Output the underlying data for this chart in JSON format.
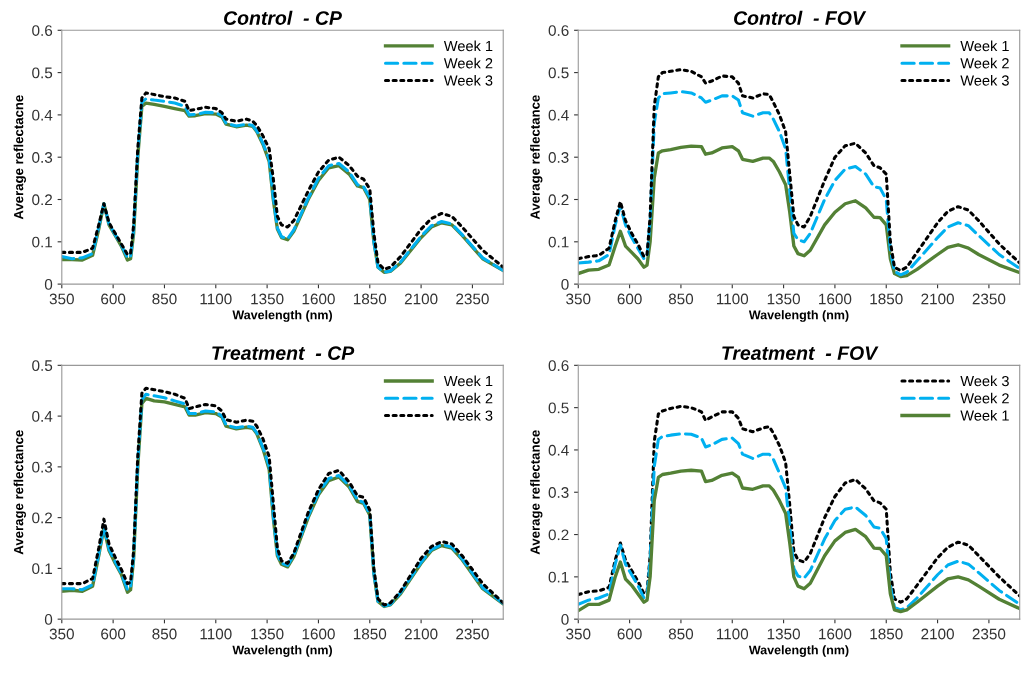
{
  "chart_data": [
    {
      "type": "line",
      "title": "Control  - CP",
      "xlabel": "Wavelength (nm)",
      "ylabel": "Average reflectacne",
      "xlim": [
        350,
        2500
      ],
      "xticks": [
        350,
        600,
        850,
        1100,
        1350,
        1600,
        1850,
        2100,
        2350
      ],
      "ylim": [
        0,
        0.6
      ],
      "yticks": [
        0,
        0.1,
        0.2,
        0.3,
        0.4,
        0.5,
        0.6
      ],
      "grid": false,
      "legend": "top right",
      "x": [
        350,
        400,
        450,
        500,
        530,
        555,
        580,
        610,
        640,
        670,
        685,
        700,
        720,
        740,
        760,
        800,
        850,
        900,
        950,
        970,
        1000,
        1050,
        1100,
        1130,
        1150,
        1200,
        1250,
        1280,
        1300,
        1330,
        1360,
        1380,
        1400,
        1420,
        1450,
        1480,
        1550,
        1600,
        1650,
        1700,
        1750,
        1790,
        1820,
        1850,
        1870,
        1890,
        1920,
        1950,
        2000,
        2100,
        2150,
        2200,
        2250,
        2300,
        2400,
        2500
      ],
      "series": [
        {
          "name": "Week 1",
          "color": "#538135",
          "line_style": "solid",
          "values": [
            0.058,
            0.058,
            0.057,
            0.068,
            0.13,
            0.19,
            0.14,
            0.115,
            0.09,
            0.057,
            0.06,
            0.12,
            0.3,
            0.42,
            0.428,
            0.425,
            0.42,
            0.415,
            0.41,
            0.397,
            0.398,
            0.403,
            0.402,
            0.395,
            0.378,
            0.372,
            0.376,
            0.373,
            0.36,
            0.33,
            0.29,
            0.2,
            0.13,
            0.11,
            0.105,
            0.125,
            0.2,
            0.245,
            0.275,
            0.28,
            0.26,
            0.232,
            0.228,
            0.2,
            0.1,
            0.04,
            0.028,
            0.03,
            0.05,
            0.11,
            0.135,
            0.145,
            0.14,
            0.115,
            0.06,
            0.032
          ]
        },
        {
          "name": "Week 2",
          "color": "#00b0f0",
          "line_style": "dashed",
          "values": [
            0.065,
            0.06,
            0.062,
            0.072,
            0.135,
            0.19,
            0.142,
            0.117,
            0.092,
            0.062,
            0.065,
            0.13,
            0.31,
            0.43,
            0.438,
            0.435,
            0.432,
            0.428,
            0.42,
            0.4,
            0.401,
            0.406,
            0.405,
            0.398,
            0.38,
            0.374,
            0.378,
            0.375,
            0.362,
            0.333,
            0.295,
            0.205,
            0.133,
            0.112,
            0.107,
            0.128,
            0.203,
            0.25,
            0.28,
            0.285,
            0.265,
            0.235,
            0.23,
            0.205,
            0.1,
            0.04,
            0.028,
            0.031,
            0.052,
            0.113,
            0.138,
            0.148,
            0.142,
            0.117,
            0.062,
            0.032
          ]
        },
        {
          "name": "Week 3",
          "color": "#000000",
          "line_style": "dotted",
          "values": [
            0.075,
            0.075,
            0.075,
            0.085,
            0.14,
            0.19,
            0.145,
            0.12,
            0.095,
            0.07,
            0.073,
            0.14,
            0.32,
            0.44,
            0.452,
            0.448,
            0.443,
            0.44,
            0.432,
            0.41,
            0.413,
            0.418,
            0.415,
            0.405,
            0.39,
            0.385,
            0.39,
            0.385,
            0.375,
            0.35,
            0.32,
            0.25,
            0.16,
            0.14,
            0.135,
            0.15,
            0.22,
            0.265,
            0.293,
            0.3,
            0.28,
            0.255,
            0.248,
            0.225,
            0.12,
            0.05,
            0.035,
            0.04,
            0.065,
            0.13,
            0.155,
            0.167,
            0.16,
            0.135,
            0.08,
            0.04
          ]
        }
      ]
    },
    {
      "type": "line",
      "title": "Control  - FOV",
      "xlabel": "Wavelength (nm)",
      "ylabel": "Average reflectance",
      "xlim": [
        350,
        2500
      ],
      "xticks": [
        350,
        600,
        850,
        1100,
        1350,
        1600,
        1850,
        2100,
        2350
      ],
      "ylim": [
        0,
        0.6
      ],
      "yticks": [
        0,
        0.1,
        0.2,
        0.3,
        0.4,
        0.5,
        0.6
      ],
      "grid": false,
      "legend": "top right",
      "x": [
        350,
        400,
        450,
        500,
        530,
        555,
        580,
        610,
        640,
        670,
        685,
        700,
        720,
        740,
        760,
        800,
        850,
        900,
        950,
        970,
        1000,
        1050,
        1100,
        1130,
        1150,
        1200,
        1250,
        1280,
        1300,
        1330,
        1360,
        1380,
        1400,
        1420,
        1450,
        1480,
        1550,
        1600,
        1650,
        1700,
        1750,
        1790,
        1820,
        1850,
        1870,
        1890,
        1920,
        1950,
        2000,
        2100,
        2150,
        2200,
        2250,
        2300,
        2400,
        2500
      ],
      "series": [
        {
          "name": "Week 1",
          "color": "#538135",
          "line_style": "solid",
          "values": [
            0.025,
            0.033,
            0.035,
            0.045,
            0.09,
            0.125,
            0.09,
            0.075,
            0.06,
            0.04,
            0.045,
            0.1,
            0.25,
            0.31,
            0.315,
            0.318,
            0.323,
            0.326,
            0.325,
            0.307,
            0.31,
            0.322,
            0.325,
            0.315,
            0.295,
            0.29,
            0.298,
            0.298,
            0.29,
            0.265,
            0.235,
            0.17,
            0.09,
            0.072,
            0.067,
            0.08,
            0.14,
            0.17,
            0.19,
            0.197,
            0.18,
            0.158,
            0.157,
            0.14,
            0.06,
            0.025,
            0.018,
            0.02,
            0.035,
            0.07,
            0.087,
            0.093,
            0.085,
            0.07,
            0.045,
            0.027
          ]
        },
        {
          "name": "Week 2",
          "color": "#00b0f0",
          "line_style": "dashed",
          "values": [
            0.05,
            0.052,
            0.055,
            0.07,
            0.14,
            0.185,
            0.14,
            0.11,
            0.085,
            0.06,
            0.065,
            0.15,
            0.38,
            0.44,
            0.45,
            0.452,
            0.455,
            0.452,
            0.44,
            0.43,
            0.435,
            0.445,
            0.445,
            0.435,
            0.405,
            0.397,
            0.405,
            0.405,
            0.39,
            0.36,
            0.32,
            0.22,
            0.12,
            0.105,
            0.1,
            0.12,
            0.2,
            0.245,
            0.272,
            0.278,
            0.26,
            0.23,
            0.227,
            0.2,
            0.08,
            0.03,
            0.022,
            0.028,
            0.055,
            0.11,
            0.135,
            0.145,
            0.138,
            0.115,
            0.07,
            0.037
          ]
        },
        {
          "name": "Week 3",
          "color": "#000000",
          "line_style": "dotted",
          "values": [
            0.06,
            0.065,
            0.068,
            0.085,
            0.15,
            0.195,
            0.15,
            0.12,
            0.095,
            0.065,
            0.07,
            0.16,
            0.42,
            0.49,
            0.5,
            0.503,
            0.507,
            0.503,
            0.49,
            0.475,
            0.48,
            0.492,
            0.49,
            0.475,
            0.445,
            0.44,
            0.45,
            0.448,
            0.43,
            0.4,
            0.36,
            0.26,
            0.16,
            0.14,
            0.135,
            0.16,
            0.245,
            0.3,
            0.327,
            0.333,
            0.31,
            0.28,
            0.275,
            0.26,
            0.1,
            0.04,
            0.032,
            0.04,
            0.075,
            0.145,
            0.172,
            0.183,
            0.175,
            0.15,
            0.095,
            0.05
          ]
        }
      ]
    },
    {
      "type": "line",
      "title": "Treatment  - CP",
      "xlabel": "Wavelength (nm)",
      "ylabel": "Average reflectance",
      "xlim": [
        350,
        2500
      ],
      "xticks": [
        350,
        600,
        850,
        1100,
        1350,
        1600,
        1850,
        2100,
        2350
      ],
      "ylim": [
        0,
        0.5
      ],
      "yticks": [
        0,
        0.1,
        0.2,
        0.3,
        0.4,
        0.5
      ],
      "grid": false,
      "legend": "top right",
      "x": [
        350,
        400,
        450,
        500,
        530,
        555,
        580,
        610,
        640,
        670,
        685,
        700,
        720,
        740,
        760,
        800,
        850,
        900,
        950,
        970,
        1000,
        1050,
        1100,
        1130,
        1150,
        1200,
        1250,
        1280,
        1300,
        1330,
        1360,
        1380,
        1400,
        1420,
        1450,
        1480,
        1550,
        1600,
        1650,
        1700,
        1750,
        1790,
        1820,
        1850,
        1870,
        1890,
        1920,
        1950,
        2000,
        2100,
        2150,
        2200,
        2250,
        2300,
        2400,
        2500
      ],
      "series": [
        {
          "name": "Week 1",
          "color": "#538135",
          "line_style": "solid",
          "values": [
            0.055,
            0.057,
            0.055,
            0.065,
            0.125,
            0.18,
            0.135,
            0.11,
            0.088,
            0.053,
            0.058,
            0.12,
            0.3,
            0.425,
            0.435,
            0.43,
            0.428,
            0.423,
            0.418,
            0.402,
            0.402,
            0.407,
            0.405,
            0.398,
            0.38,
            0.375,
            0.378,
            0.376,
            0.365,
            0.335,
            0.295,
            0.2,
            0.125,
            0.108,
            0.103,
            0.123,
            0.2,
            0.245,
            0.273,
            0.28,
            0.26,
            0.232,
            0.228,
            0.205,
            0.09,
            0.035,
            0.025,
            0.028,
            0.05,
            0.11,
            0.135,
            0.145,
            0.14,
            0.117,
            0.06,
            0.03
          ]
        },
        {
          "name": "Week 2",
          "color": "#00b0f0",
          "line_style": "dashed",
          "values": [
            0.06,
            0.06,
            0.058,
            0.068,
            0.128,
            0.183,
            0.138,
            0.113,
            0.09,
            0.058,
            0.062,
            0.125,
            0.31,
            0.432,
            0.443,
            0.44,
            0.436,
            0.43,
            0.424,
            0.405,
            0.405,
            0.41,
            0.408,
            0.4,
            0.382,
            0.377,
            0.38,
            0.378,
            0.367,
            0.338,
            0.3,
            0.205,
            0.128,
            0.11,
            0.106,
            0.126,
            0.203,
            0.248,
            0.277,
            0.283,
            0.263,
            0.235,
            0.23,
            0.207,
            0.09,
            0.035,
            0.026,
            0.029,
            0.052,
            0.112,
            0.137,
            0.147,
            0.142,
            0.119,
            0.062,
            0.031
          ]
        },
        {
          "name": "Week 3",
          "color": "#000000",
          "line_style": "dotted",
          "values": [
            0.07,
            0.07,
            0.07,
            0.08,
            0.14,
            0.197,
            0.148,
            0.122,
            0.098,
            0.07,
            0.073,
            0.135,
            0.32,
            0.445,
            0.455,
            0.452,
            0.448,
            0.443,
            0.435,
            0.415,
            0.418,
            0.423,
            0.42,
            0.41,
            0.393,
            0.388,
            0.392,
            0.39,
            0.38,
            0.355,
            0.32,
            0.23,
            0.14,
            0.115,
            0.11,
            0.13,
            0.21,
            0.255,
            0.287,
            0.293,
            0.27,
            0.243,
            0.24,
            0.215,
            0.1,
            0.04,
            0.028,
            0.032,
            0.055,
            0.12,
            0.143,
            0.153,
            0.148,
            0.125,
            0.07,
            0.032
          ]
        }
      ]
    },
    {
      "type": "line",
      "title": "Treatment  - FOV",
      "xlabel": "Wavelength (nm)",
      "ylabel": "Average reflectance",
      "xlim": [
        350,
        2500
      ],
      "xticks": [
        350,
        600,
        850,
        1100,
        1350,
        1600,
        1850,
        2100,
        2350
      ],
      "ylim": [
        0,
        0.6
      ],
      "yticks": [
        0,
        0.1,
        0.2,
        0.3,
        0.4,
        0.5,
        0.6
      ],
      "grid": false,
      "legend": "top right",
      "x": [
        350,
        400,
        450,
        500,
        530,
        555,
        580,
        610,
        640,
        670,
        685,
        700,
        720,
        740,
        760,
        800,
        850,
        900,
        950,
        970,
        1000,
        1050,
        1100,
        1130,
        1150,
        1200,
        1250,
        1280,
        1300,
        1330,
        1360,
        1380,
        1400,
        1420,
        1450,
        1480,
        1550,
        1600,
        1650,
        1700,
        1750,
        1790,
        1820,
        1850,
        1870,
        1890,
        1920,
        1950,
        2000,
        2100,
        2150,
        2200,
        2250,
        2300,
        2400,
        2500
      ],
      "series": [
        {
          "name": "Week 3",
          "color": "#000000",
          "line_style": "dotted",
          "values": [
            0.058,
            0.065,
            0.067,
            0.075,
            0.14,
            0.18,
            0.14,
            0.115,
            0.09,
            0.06,
            0.065,
            0.15,
            0.42,
            0.485,
            0.492,
            0.498,
            0.503,
            0.5,
            0.49,
            0.47,
            0.478,
            0.49,
            0.49,
            0.475,
            0.45,
            0.443,
            0.452,
            0.455,
            0.44,
            0.41,
            0.37,
            0.27,
            0.16,
            0.14,
            0.135,
            0.155,
            0.24,
            0.29,
            0.322,
            0.33,
            0.308,
            0.28,
            0.275,
            0.26,
            0.11,
            0.048,
            0.04,
            0.048,
            0.08,
            0.145,
            0.17,
            0.182,
            0.175,
            0.15,
            0.1,
            0.055
          ]
        },
        {
          "name": "Week 2",
          "color": "#00b0f0",
          "line_style": "dashed",
          "values": [
            0.035,
            0.045,
            0.05,
            0.06,
            0.13,
            0.175,
            0.13,
            0.105,
            0.08,
            0.05,
            0.055,
            0.14,
            0.36,
            0.425,
            0.432,
            0.435,
            0.438,
            0.437,
            0.428,
            0.407,
            0.412,
            0.425,
            0.428,
            0.415,
            0.39,
            0.38,
            0.39,
            0.39,
            0.378,
            0.345,
            0.31,
            0.22,
            0.12,
            0.102,
            0.097,
            0.115,
            0.19,
            0.233,
            0.26,
            0.265,
            0.245,
            0.218,
            0.215,
            0.19,
            0.08,
            0.028,
            0.022,
            0.027,
            0.05,
            0.105,
            0.128,
            0.137,
            0.13,
            0.11,
            0.068,
            0.035
          ]
        },
        {
          "name": "Week 1",
          "color": "#538135",
          "line_style": "solid",
          "values": [
            0.02,
            0.035,
            0.035,
            0.045,
            0.1,
            0.135,
            0.095,
            0.08,
            0.06,
            0.04,
            0.045,
            0.1,
            0.28,
            0.335,
            0.342,
            0.345,
            0.35,
            0.352,
            0.35,
            0.325,
            0.328,
            0.34,
            0.345,
            0.335,
            0.31,
            0.307,
            0.315,
            0.315,
            0.305,
            0.28,
            0.25,
            0.18,
            0.1,
            0.078,
            0.072,
            0.085,
            0.15,
            0.185,
            0.205,
            0.212,
            0.195,
            0.168,
            0.167,
            0.15,
            0.06,
            0.022,
            0.018,
            0.022,
            0.04,
            0.078,
            0.095,
            0.1,
            0.093,
            0.078,
            0.047,
            0.025
          ]
        }
      ]
    }
  ]
}
